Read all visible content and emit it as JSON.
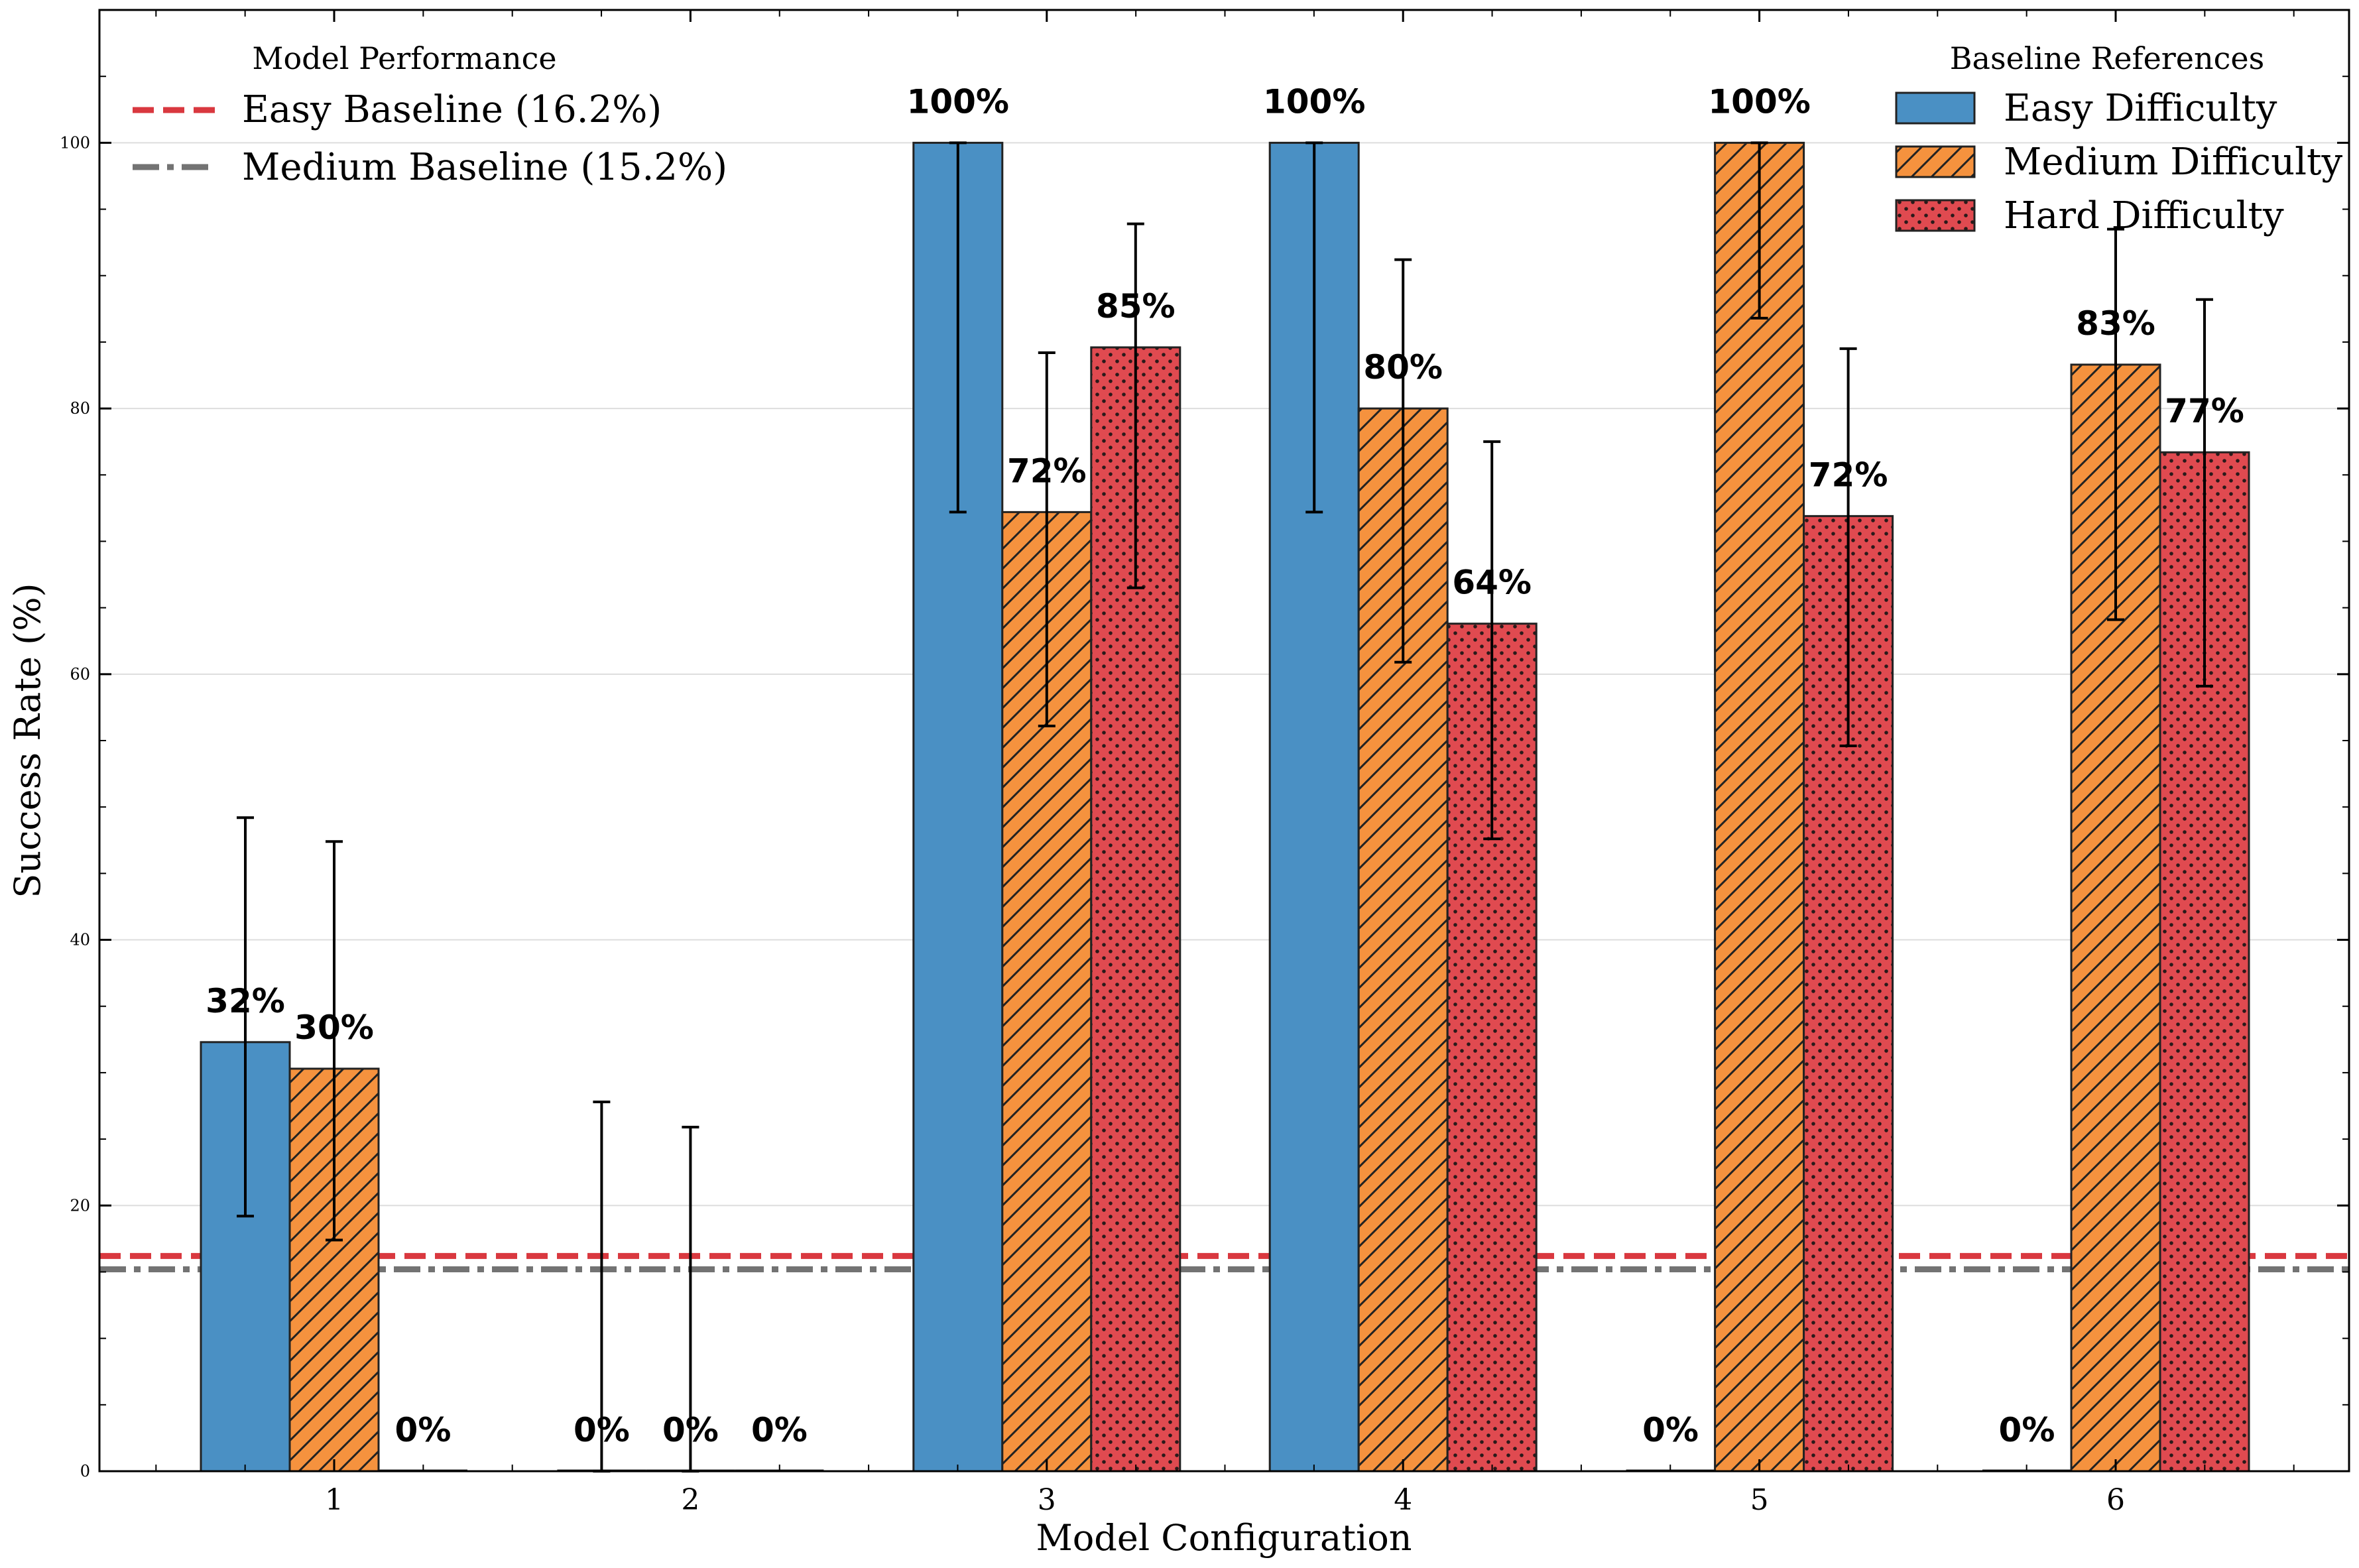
{
  "chart_data": {
    "type": "bar",
    "title": "",
    "xlabel": "Model Configuration",
    "ylabel": "Success Rate (%)",
    "ylim": [
      0,
      110
    ],
    "yticks": [
      0,
      20,
      40,
      60,
      80,
      100
    ],
    "grid": true,
    "categories": [
      "1",
      "2",
      "3",
      "4",
      "5",
      "6"
    ],
    "series": [
      {
        "name": "Easy Difficulty",
        "color": "#4a90c4",
        "pattern": "solid",
        "values": [
          32.3,
          0,
          100,
          100,
          0,
          0
        ],
        "err_low": [
          19.2,
          0,
          72.2,
          72.2,
          0,
          0
        ],
        "err_high": [
          49.2,
          27.8,
          100,
          100,
          0,
          0
        ],
        "show_err": [
          true,
          true,
          true,
          true,
          false,
          false
        ],
        "labels": [
          "32%",
          "0%",
          "100%",
          "100%",
          "0%",
          "0%"
        ],
        "show_label": [
          true,
          true,
          true,
          true,
          true,
          true
        ]
      },
      {
        "name": "Medium Difficulty",
        "color": "#f5923e",
        "pattern": "hatch",
        "values": [
          30.3,
          0,
          72.2,
          80,
          100,
          83.3
        ],
        "err_low": [
          17.4,
          0,
          56.1,
          60.9,
          86.8,
          64.1
        ],
        "err_high": [
          47.4,
          25.9,
          84.2,
          91.2,
          100,
          93.5
        ],
        "show_err": [
          true,
          true,
          true,
          true,
          true,
          true
        ],
        "labels": [
          "30%",
          "0%",
          "72%",
          "80%",
          "100%",
          "83%"
        ],
        "show_label": [
          true,
          true,
          true,
          true,
          true,
          true
        ]
      },
      {
        "name": "Hard Difficulty",
        "color": "#e04a50",
        "pattern": "dots",
        "values": [
          0,
          0,
          84.6,
          63.8,
          71.9,
          76.7
        ],
        "err_low": [
          0,
          0,
          66.5,
          47.6,
          54.6,
          59.1
        ],
        "err_high": [
          0,
          0,
          93.9,
          77.5,
          84.5,
          88.2
        ],
        "show_err": [
          false,
          false,
          true,
          true,
          true,
          true
        ],
        "labels": [
          "0%",
          "0%",
          "85%",
          "64%",
          "72%",
          "77%"
        ],
        "show_label": [
          true,
          true,
          true,
          true,
          true,
          true
        ]
      }
    ],
    "baselines": [
      {
        "name": "Easy Baseline (16.2%)",
        "value": 16.2,
        "color": "#d9383f",
        "style": "dashed"
      },
      {
        "name": "Medium Baseline (15.2%)",
        "value": 15.2,
        "color": "#737373",
        "style": "dashdot"
      }
    ],
    "legend_left": {
      "title": "Model Performance",
      "placement": "top-left"
    },
    "legend_right": {
      "title": "Baseline References",
      "placement": "top-right"
    }
  }
}
